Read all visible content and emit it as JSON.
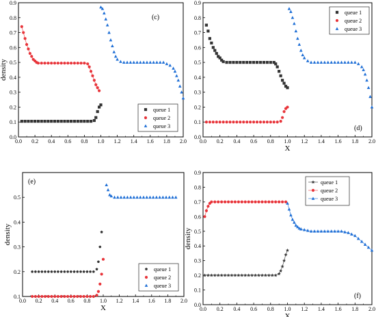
{
  "chart_data": [
    {
      "type": "scatter",
      "panel_label": "(c)",
      "xlabel": "",
      "ylabel": "density",
      "xlim": [
        0,
        2.0
      ],
      "ylim": [
        0,
        0.9
      ],
      "x_ticks": [
        "0.0",
        "0.2",
        "0.4",
        "0.6",
        "0.8",
        "1.0",
        "1.2",
        "1.4",
        "1.6",
        "1.8",
        "2.0"
      ],
      "y_ticks": [
        "0.0",
        "0.1",
        "0.2",
        "0.3",
        "0.4",
        "0.5",
        "0.6",
        "0.7",
        "0.8",
        "0.9"
      ],
      "legend_position": "bottom-right",
      "series": [
        {
          "name": "queue 1",
          "marker": "square",
          "color": "#333333",
          "x": [
            0.04,
            0.08,
            0.12,
            0.16,
            0.2,
            0.24,
            0.28,
            0.32,
            0.36,
            0.4,
            0.44,
            0.48,
            0.52,
            0.56,
            0.6,
            0.64,
            0.68,
            0.72,
            0.76,
            0.8,
            0.84,
            0.88,
            0.92,
            0.94,
            0.96,
            0.98,
            1.0
          ],
          "y": [
            0.105,
            0.105,
            0.105,
            0.105,
            0.105,
            0.105,
            0.105,
            0.105,
            0.105,
            0.105,
            0.105,
            0.105,
            0.105,
            0.105,
            0.105,
            0.105,
            0.105,
            0.105,
            0.105,
            0.105,
            0.105,
            0.105,
            0.11,
            0.13,
            0.17,
            0.2,
            0.215
          ]
        },
        {
          "name": "queue 2",
          "marker": "circle",
          "color": "#e8343a",
          "x": [
            0.04,
            0.06,
            0.08,
            0.1,
            0.12,
            0.14,
            0.16,
            0.18,
            0.2,
            0.22,
            0.24,
            0.28,
            0.32,
            0.36,
            0.4,
            0.44,
            0.48,
            0.52,
            0.56,
            0.6,
            0.64,
            0.68,
            0.72,
            0.76,
            0.8,
            0.84,
            0.86,
            0.88,
            0.9,
            0.92,
            0.94,
            0.96,
            0.98
          ],
          "y": [
            0.74,
            0.7,
            0.66,
            0.62,
            0.59,
            0.56,
            0.54,
            0.52,
            0.51,
            0.5,
            0.495,
            0.495,
            0.495,
            0.495,
            0.495,
            0.495,
            0.495,
            0.495,
            0.495,
            0.495,
            0.495,
            0.495,
            0.495,
            0.495,
            0.495,
            0.49,
            0.47,
            0.44,
            0.41,
            0.38,
            0.35,
            0.33,
            0.31
          ]
        },
        {
          "name": "queue 3",
          "marker": "triangle",
          "color": "#1f6fd6",
          "x": [
            1.0,
            1.02,
            1.04,
            1.06,
            1.08,
            1.1,
            1.12,
            1.14,
            1.16,
            1.18,
            1.2,
            1.24,
            1.28,
            1.32,
            1.36,
            1.4,
            1.44,
            1.48,
            1.52,
            1.56,
            1.6,
            1.64,
            1.68,
            1.72,
            1.76,
            1.8,
            1.84,
            1.88,
            1.9,
            1.92,
            1.94,
            1.96,
            1.98,
            2.0
          ],
          "y": [
            0.87,
            0.86,
            0.83,
            0.79,
            0.75,
            0.7,
            0.65,
            0.61,
            0.57,
            0.54,
            0.52,
            0.505,
            0.5,
            0.5,
            0.5,
            0.5,
            0.5,
            0.5,
            0.5,
            0.5,
            0.5,
            0.5,
            0.5,
            0.5,
            0.5,
            0.49,
            0.48,
            0.46,
            0.44,
            0.41,
            0.38,
            0.34,
            0.3,
            0.26
          ]
        }
      ]
    },
    {
      "type": "scatter",
      "panel_label": "(d)",
      "xlabel": "X",
      "ylabel": "",
      "xlim": [
        0,
        2.0
      ],
      "ylim": [
        0,
        0.9
      ],
      "x_ticks": [
        "0.0",
        "0.2",
        "0.4",
        "0.6",
        "0.8",
        "1.0",
        "1.2",
        "1.4",
        "1.6",
        "1.8",
        "2.0"
      ],
      "y_ticks": [
        "0.0",
        "0.1",
        "0.2",
        "0.3",
        "0.4",
        "0.5",
        "0.6",
        "0.7",
        "0.8",
        "0.9"
      ],
      "legend_position": "top-right",
      "series": [
        {
          "name": "queue 1",
          "marker": "square",
          "color": "#333333",
          "x": [
            0.04,
            0.06,
            0.08,
            0.1,
            0.12,
            0.14,
            0.16,
            0.18,
            0.2,
            0.22,
            0.24,
            0.28,
            0.32,
            0.36,
            0.4,
            0.44,
            0.48,
            0.52,
            0.56,
            0.6,
            0.64,
            0.68,
            0.72,
            0.76,
            0.8,
            0.84,
            0.86,
            0.88,
            0.9,
            0.92,
            0.94,
            0.96,
            0.98,
            1.0
          ],
          "y": [
            0.75,
            0.71,
            0.66,
            0.63,
            0.6,
            0.58,
            0.56,
            0.54,
            0.53,
            0.515,
            0.505,
            0.5,
            0.5,
            0.5,
            0.5,
            0.5,
            0.5,
            0.5,
            0.5,
            0.5,
            0.5,
            0.5,
            0.5,
            0.5,
            0.5,
            0.5,
            0.49,
            0.47,
            0.44,
            0.41,
            0.38,
            0.36,
            0.34,
            0.33
          ]
        },
        {
          "name": "queue 2",
          "marker": "circle",
          "color": "#e8343a",
          "x": [
            0.04,
            0.08,
            0.12,
            0.16,
            0.2,
            0.24,
            0.28,
            0.32,
            0.36,
            0.4,
            0.44,
            0.48,
            0.52,
            0.56,
            0.6,
            0.64,
            0.68,
            0.72,
            0.76,
            0.8,
            0.84,
            0.88,
            0.92,
            0.94,
            0.96,
            0.98,
            1.0
          ],
          "y": [
            0.1,
            0.1,
            0.1,
            0.1,
            0.1,
            0.1,
            0.1,
            0.1,
            0.1,
            0.1,
            0.1,
            0.1,
            0.1,
            0.1,
            0.1,
            0.1,
            0.1,
            0.1,
            0.1,
            0.1,
            0.1,
            0.1,
            0.105,
            0.13,
            0.17,
            0.19,
            0.2
          ]
        },
        {
          "name": "queue 3",
          "marker": "triangle",
          "color": "#1f6fd6",
          "x": [
            1.02,
            1.04,
            1.06,
            1.08,
            1.1,
            1.12,
            1.14,
            1.16,
            1.18,
            1.2,
            1.24,
            1.28,
            1.32,
            1.36,
            1.4,
            1.44,
            1.48,
            1.52,
            1.56,
            1.6,
            1.64,
            1.68,
            1.72,
            1.76,
            1.8,
            1.84,
            1.88,
            1.9,
            1.92,
            1.94,
            1.96,
            1.98,
            2.0
          ],
          "y": [
            0.86,
            0.84,
            0.8,
            0.76,
            0.71,
            0.66,
            0.62,
            0.58,
            0.55,
            0.53,
            0.51,
            0.5,
            0.5,
            0.5,
            0.5,
            0.5,
            0.5,
            0.5,
            0.5,
            0.5,
            0.5,
            0.5,
            0.5,
            0.5,
            0.5,
            0.49,
            0.47,
            0.45,
            0.42,
            0.38,
            0.33,
            0.27,
            0.2
          ]
        }
      ]
    },
    {
      "type": "scatter",
      "panel_label": "(e)",
      "xlabel": "X",
      "ylabel": "density",
      "xlim": [
        0,
        2.0
      ],
      "ylim": [
        0.1,
        0.6
      ],
      "x_ticks": [
        "0.0",
        "0.2",
        "0.4",
        "0.6",
        "0.8",
        "1.0",
        "1.2",
        "1.4",
        "1.6",
        "1.8",
        "2.0"
      ],
      "y_ticks": [
        "0.1",
        "0.2",
        "0.3",
        "0.4",
        "0.5"
      ],
      "legend_position": "bottom-right",
      "series": [
        {
          "name": "queue 1",
          "marker": "pentagon",
          "color": "#333333",
          "x": [
            0.12,
            0.16,
            0.2,
            0.24,
            0.28,
            0.32,
            0.36,
            0.4,
            0.44,
            0.48,
            0.52,
            0.56,
            0.6,
            0.64,
            0.68,
            0.72,
            0.76,
            0.8,
            0.84,
            0.88,
            0.92,
            0.94,
            0.96,
            0.98
          ],
          "y": [
            0.2,
            0.2,
            0.2,
            0.2,
            0.2,
            0.2,
            0.2,
            0.2,
            0.2,
            0.2,
            0.2,
            0.2,
            0.2,
            0.2,
            0.2,
            0.2,
            0.2,
            0.2,
            0.2,
            0.2,
            0.21,
            0.24,
            0.3,
            0.36
          ]
        },
        {
          "name": "queue 2",
          "marker": "circle",
          "color": "#e8343a",
          "x": [
            0.12,
            0.16,
            0.2,
            0.24,
            0.28,
            0.32,
            0.36,
            0.4,
            0.44,
            0.48,
            0.52,
            0.56,
            0.6,
            0.64,
            0.68,
            0.72,
            0.76,
            0.8,
            0.84,
            0.88,
            0.92,
            0.94,
            0.96,
            0.98,
            1.0
          ],
          "y": [
            0.1,
            0.1,
            0.1,
            0.1,
            0.1,
            0.1,
            0.1,
            0.1,
            0.1,
            0.1,
            0.1,
            0.1,
            0.1,
            0.1,
            0.1,
            0.1,
            0.1,
            0.1,
            0.1,
            0.1,
            0.105,
            0.12,
            0.15,
            0.19,
            0.25
          ]
        },
        {
          "name": "queue 3",
          "marker": "triangle",
          "color": "#1f6fd6",
          "x": [
            1.04,
            1.06,
            1.08,
            1.1,
            1.14,
            1.18,
            1.22,
            1.26,
            1.3,
            1.34,
            1.38,
            1.42,
            1.46,
            1.5,
            1.54,
            1.58,
            1.62,
            1.66,
            1.7,
            1.74,
            1.78,
            1.82,
            1.86,
            1.9
          ],
          "y": [
            0.55,
            0.53,
            0.51,
            0.505,
            0.5,
            0.5,
            0.5,
            0.5,
            0.5,
            0.5,
            0.5,
            0.5,
            0.5,
            0.5,
            0.5,
            0.5,
            0.5,
            0.5,
            0.5,
            0.5,
            0.5,
            0.5,
            0.5,
            0.5
          ]
        }
      ]
    },
    {
      "type": "scatter",
      "panel_label": "(f)",
      "xlabel": "X",
      "ylabel": "density",
      "xlim": [
        0,
        2.0
      ],
      "ylim": [
        0,
        0.9
      ],
      "x_ticks": [
        "0.0",
        "0.2",
        "0.4",
        "0.6",
        "0.8",
        "1.0",
        "1.2",
        "1.4",
        "1.6",
        "1.8",
        "2.0"
      ],
      "y_ticks": [
        "0.0",
        "0.1",
        "0.2",
        "0.3",
        "0.4",
        "0.5",
        "0.6",
        "0.7",
        "0.8",
        "0.9"
      ],
      "legend_position": "top-left",
      "series": [
        {
          "name": "queue 1",
          "marker": "star",
          "color": "#333333",
          "x": [
            0.02,
            0.06,
            0.1,
            0.14,
            0.18,
            0.22,
            0.26,
            0.3,
            0.34,
            0.38,
            0.42,
            0.46,
            0.5,
            0.54,
            0.58,
            0.62,
            0.66,
            0.7,
            0.74,
            0.78,
            0.82,
            0.86,
            0.9,
            0.92,
            0.94,
            0.96,
            0.98,
            1.0
          ],
          "y": [
            0.2,
            0.2,
            0.2,
            0.2,
            0.2,
            0.2,
            0.2,
            0.2,
            0.2,
            0.2,
            0.2,
            0.2,
            0.2,
            0.2,
            0.2,
            0.2,
            0.2,
            0.2,
            0.2,
            0.2,
            0.2,
            0.2,
            0.21,
            0.23,
            0.26,
            0.3,
            0.34,
            0.37
          ]
        },
        {
          "name": "queue 2",
          "marker": "circle",
          "color": "#e8343a",
          "x": [
            0.02,
            0.04,
            0.06,
            0.08,
            0.1,
            0.14,
            0.18,
            0.22,
            0.26,
            0.3,
            0.34,
            0.38,
            0.42,
            0.46,
            0.5,
            0.54,
            0.58,
            0.62,
            0.66,
            0.7,
            0.74,
            0.78,
            0.82,
            0.86,
            0.9,
            0.94,
            0.98
          ],
          "y": [
            0.6,
            0.64,
            0.67,
            0.69,
            0.7,
            0.7,
            0.7,
            0.7,
            0.7,
            0.7,
            0.7,
            0.7,
            0.7,
            0.7,
            0.7,
            0.7,
            0.7,
            0.7,
            0.7,
            0.7,
            0.7,
            0.7,
            0.7,
            0.7,
            0.7,
            0.7,
            0.7
          ]
        },
        {
          "name": "queue 3",
          "marker": "triangle",
          "color": "#1f6fd6",
          "x": [
            1.0,
            1.02,
            1.04,
            1.06,
            1.08,
            1.1,
            1.12,
            1.14,
            1.16,
            1.2,
            1.24,
            1.28,
            1.32,
            1.36,
            1.4,
            1.44,
            1.48,
            1.52,
            1.56,
            1.6,
            1.64,
            1.68,
            1.72,
            1.76,
            1.8,
            1.84,
            1.88,
            1.92,
            1.96,
            2.0
          ],
          "y": [
            0.69,
            0.65,
            0.61,
            0.58,
            0.56,
            0.54,
            0.53,
            0.52,
            0.515,
            0.51,
            0.505,
            0.5,
            0.5,
            0.5,
            0.5,
            0.5,
            0.5,
            0.5,
            0.5,
            0.5,
            0.5,
            0.495,
            0.49,
            0.48,
            0.47,
            0.45,
            0.43,
            0.41,
            0.39,
            0.37
          ]
        }
      ]
    }
  ]
}
